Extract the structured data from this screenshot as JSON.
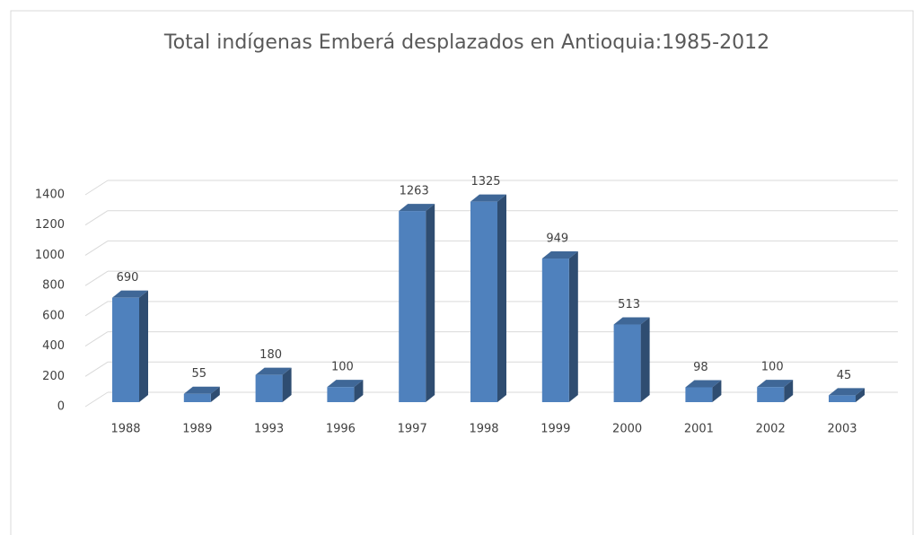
{
  "chart_data": {
    "type": "bar",
    "title": "Total indígenas Emberá desplazados en Antioquia:1985-2012",
    "categories": [
      "1988",
      "1989",
      "1993",
      "1996",
      "1997",
      "1998",
      "1999",
      "2000",
      "2001",
      "2002",
      "2003"
    ],
    "values": [
      690,
      55,
      180,
      100,
      1263,
      1325,
      949,
      513,
      98,
      100,
      45
    ],
    "color": "#4f81bd",
    "ylim": [
      0,
      1400
    ],
    "yticks": [
      0,
      200,
      400,
      600,
      800,
      1000,
      1200,
      1400
    ],
    "grid": true
  }
}
